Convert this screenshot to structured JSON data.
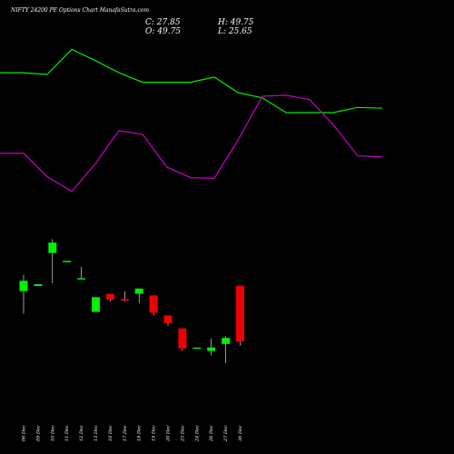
{
  "chart_data": {
    "type": "candlestick",
    "title": "NIFTY 24200  PE Options  Chart ManafaSutra.com",
    "ohlc": {
      "close": "C: 27.85",
      "high": "H: 49.75",
      "open": "O: 49.75",
      "low": "L: 25.65"
    },
    "colors": {
      "up": "#00ee00",
      "down": "#ee0000",
      "line_upper": "#00ee00",
      "line_lower": "#cc00cc",
      "background": "#000000",
      "text": "#ffffff"
    },
    "categories": [
      "06 Dec",
      "09 Dec",
      "10 Dec",
      "11 Dec",
      "12 Dec",
      "13 Dec",
      "16 Dec",
      "17 Dec",
      "18 Dec",
      "19 Dec",
      "20 Dec",
      "23 Dec",
      "24 Dec",
      "26 Dec",
      "27 Dec",
      "30 Dec"
    ],
    "candles": [
      {
        "open": 146,
        "close": 158,
        "high": 165,
        "low": 120
      },
      {
        "open": 152,
        "close": 154,
        "high": 154,
        "low": 152
      },
      {
        "open": 190,
        "close": 202,
        "high": 206,
        "low": 155
      },
      {
        "open": 180,
        "close": 181,
        "high": 181,
        "low": 180
      },
      {
        "open": 160,
        "close": 161,
        "high": 174,
        "low": 160
      },
      {
        "open": 122,
        "close": 139,
        "high": 139,
        "low": 122
      },
      {
        "open": 143,
        "close": 136,
        "high": 143,
        "low": 134
      },
      {
        "open": 137,
        "close": 135,
        "high": 146,
        "low": 134
      },
      {
        "open": 143,
        "close": 149,
        "high": 149,
        "low": 132
      },
      {
        "open": 141,
        "close": 121,
        "high": 141,
        "low": 118
      },
      {
        "open": 118,
        "close": 109,
        "high": 118,
        "low": 106
      },
      {
        "open": 103,
        "close": 80,
        "high": 103,
        "low": 77
      },
      {
        "open": 81,
        "close": 81,
        "high": 81,
        "low": 81
      },
      {
        "open": 77,
        "close": 81,
        "high": 91,
        "low": 72
      },
      {
        "open": 85,
        "close": 92,
        "high": 94,
        "low": 63
      },
      {
        "open": 152,
        "close": 88,
        "high": 152,
        "low": 83
      }
    ],
    "upper_line": [
      398,
      398,
      396,
      425,
      412,
      398,
      387,
      387,
      387,
      393,
      375,
      369,
      352,
      352,
      352,
      358,
      357
    ],
    "lower_line": [
      305,
      305,
      278,
      261,
      293,
      331,
      327,
      289,
      277,
      276,
      320,
      371,
      372,
      367,
      338,
      302,
      301
    ]
  }
}
